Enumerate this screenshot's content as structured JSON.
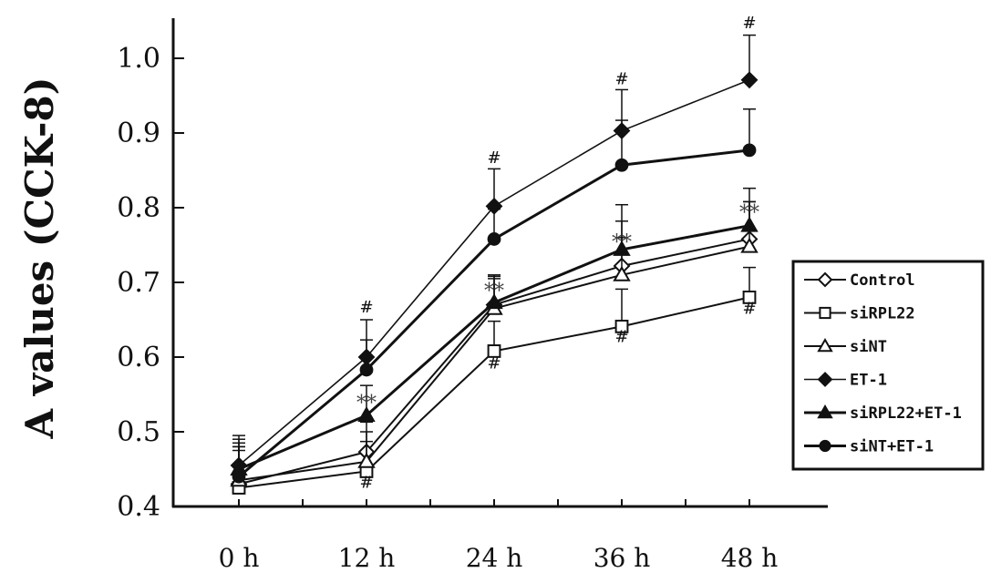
{
  "chart_data": {
    "type": "line",
    "title": "",
    "xlabel": "",
    "ylabel": "A values (CCK-8)",
    "categories": [
      "0 h",
      "12 h",
      "24 h",
      "36 h",
      "48 h"
    ],
    "ylim": [
      0.4,
      1.05
    ],
    "yticks": [
      "0.4",
      "0.5",
      "0.6",
      "0.7",
      "0.8",
      "0.9",
      "1.0"
    ],
    "legend_position": "right",
    "grid": false,
    "series": [
      {
        "name": "Control",
        "marker": "diamond-open",
        "values": [
          0.43,
          0.473,
          0.67,
          0.722,
          0.758
        ],
        "errors": [
          0.05,
          0.04,
          0.04,
          0.06,
          0.05
        ]
      },
      {
        "name": "siRPL22",
        "marker": "square-open",
        "values": [
          0.425,
          0.447,
          0.608,
          0.641,
          0.68
        ],
        "errors": [
          0.05,
          0.04,
          0.04,
          0.05,
          0.04
        ]
      },
      {
        "name": "siNT",
        "marker": "triangle-open",
        "values": [
          0.435,
          0.46,
          0.665,
          0.71,
          0.748
        ],
        "errors": [
          0.05,
          0.04,
          0.04,
          0.05,
          0.06
        ]
      },
      {
        "name": "ET-1",
        "marker": "diamond-filled",
        "values": [
          0.455,
          0.6,
          0.802,
          0.903,
          0.971
        ],
        "errors": [
          0.04,
          0.05,
          0.05,
          0.055,
          0.06
        ]
      },
      {
        "name": "siRPL22+ET-1",
        "marker": "triangle-filled",
        "values": [
          0.45,
          0.522,
          0.673,
          0.744,
          0.776
        ],
        "errors": [
          0.04,
          0.04,
          0.035,
          0.06,
          0.05
        ]
      },
      {
        "name": "siNT+ET-1",
        "marker": "circle-filled",
        "values": [
          0.44,
          0.583,
          0.758,
          0.857,
          0.877
        ],
        "errors": [
          0.04,
          0.04,
          0.04,
          0.06,
          0.055
        ]
      }
    ],
    "annotations": [
      {
        "text": "#",
        "x": "12 h",
        "y": 0.66
      },
      {
        "text": "#",
        "x": "24 h",
        "y": 0.86
      },
      {
        "text": "#",
        "x": "36 h",
        "y": 0.965
      },
      {
        "text": "#",
        "x": "48 h",
        "y": 1.04
      },
      {
        "text": "#",
        "x": "12 h",
        "y": 0.425
      },
      {
        "text": "#",
        "x": "24 h",
        "y": 0.585
      },
      {
        "text": "#",
        "x": "36 h",
        "y": 0.62
      },
      {
        "text": "#",
        "x": "48 h",
        "y": 0.658
      },
      {
        "text": "**",
        "x": "12 h",
        "y": 0.53
      },
      {
        "text": "**",
        "x": "24 h",
        "y": 0.68
      },
      {
        "text": "**",
        "x": "36 h",
        "y": 0.745
      },
      {
        "text": "**",
        "x": "48 h",
        "y": 0.785
      }
    ]
  }
}
